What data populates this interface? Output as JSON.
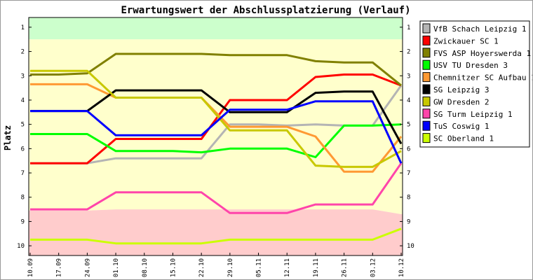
{
  "chart_data": {
    "type": "line",
    "title": "Erwartungswert der Abschlussplatzierung (Verlauf)",
    "ylabel": "Platz",
    "xlabel": "",
    "ylim": [
      10.4,
      0.6
    ],
    "y_ticks": [
      "1",
      "2",
      "3",
      "4",
      "5",
      "6",
      "7",
      "8",
      "9",
      "10"
    ],
    "categories": [
      "10.09",
      "17.09",
      "24.09",
      "01.10",
      "08.10",
      "15.10",
      "22.10",
      "29.10",
      "05.11",
      "12.11",
      "19.11",
      "26.11",
      "03.12",
      "10.12"
    ],
    "bands": [
      {
        "name": "promotion",
        "color": "#ccffcc",
        "from": [
          0.6,
          0.6,
          0.6,
          0.6,
          0.6,
          0.6,
          0.6,
          0.6,
          0.6,
          0.6,
          0.6,
          0.6,
          0.6,
          0.6
        ],
        "to": [
          1.5,
          1.5,
          1.5,
          1.5,
          1.5,
          1.5,
          1.5,
          1.5,
          1.5,
          1.5,
          1.5,
          1.5,
          1.5,
          1.5
        ]
      },
      {
        "name": "middle",
        "color": "#ffffcc",
        "from": [
          1.5,
          1.5,
          1.5,
          1.5,
          1.5,
          1.5,
          1.5,
          1.5,
          1.5,
          1.5,
          1.5,
          1.5,
          1.5,
          1.5
        ],
        "to": [
          8.55,
          8.55,
          8.55,
          8.5,
          8.5,
          8.5,
          8.5,
          8.5,
          8.5,
          8.5,
          8.5,
          8.5,
          8.5,
          8.7
        ]
      },
      {
        "name": "relegation",
        "color": "#ffcccc",
        "from": [
          8.55,
          8.55,
          8.55,
          8.5,
          8.5,
          8.5,
          8.5,
          8.5,
          8.5,
          8.5,
          8.5,
          8.5,
          8.5,
          8.7
        ],
        "to": [
          10.4,
          10.4,
          10.4,
          10.4,
          10.4,
          10.4,
          10.4,
          10.4,
          10.4,
          10.4,
          10.4,
          10.4,
          10.4,
          10.4
        ]
      }
    ],
    "series": [
      {
        "name": "VfB Schach Leipzig 1",
        "color": "#b4b4b4",
        "values": [
          6.6,
          6.6,
          6.6,
          6.4,
          6.4,
          6.4,
          6.4,
          5.0,
          5.0,
          5.05,
          5.0,
          5.05,
          5.05,
          3.4
        ]
      },
      {
        "name": "Zwickauer SC 1",
        "color": "#ff0000",
        "values": [
          6.6,
          6.6,
          6.6,
          5.6,
          5.6,
          5.6,
          5.6,
          4.0,
          4.0,
          4.0,
          3.05,
          2.95,
          2.95,
          3.4
        ]
      },
      {
        "name": "FVS ASP Hoyerswerda 1",
        "color": "#808000",
        "values": [
          2.95,
          2.95,
          2.9,
          2.1,
          2.1,
          2.1,
          2.1,
          2.15,
          2.15,
          2.15,
          2.4,
          2.45,
          2.45,
          3.4
        ]
      },
      {
        "name": "USV TU Dresden 3",
        "color": "#00ff00",
        "values": [
          5.4,
          5.4,
          5.4,
          6.1,
          6.1,
          6.1,
          6.15,
          6.0,
          6.0,
          6.0,
          6.35,
          5.05,
          5.05,
          5.0
        ]
      },
      {
        "name": "Chemnitzer SC Aufbau 1",
        "color": "#ff9933",
        "values": [
          3.35,
          3.35,
          3.35,
          3.9,
          3.9,
          3.9,
          3.9,
          5.1,
          5.1,
          5.1,
          5.5,
          6.95,
          6.95,
          5.5
        ]
      },
      {
        "name": "SG Leipzig 3",
        "color": "#000000",
        "values": [
          4.45,
          4.45,
          4.45,
          3.6,
          3.6,
          3.6,
          3.6,
          4.5,
          4.5,
          4.5,
          3.7,
          3.65,
          3.65,
          5.8
        ]
      },
      {
        "name": "GW Dresden 2",
        "color": "#c8c800",
        "values": [
          2.8,
          2.8,
          2.8,
          3.9,
          3.9,
          3.9,
          3.9,
          5.25,
          5.25,
          5.25,
          6.7,
          6.75,
          6.75,
          6.1
        ]
      },
      {
        "name": "SG Turm Leipzig 1",
        "color": "#ff44aa",
        "values": [
          8.5,
          8.5,
          8.5,
          7.8,
          7.8,
          7.8,
          7.8,
          8.65,
          8.65,
          8.65,
          8.3,
          8.3,
          8.3,
          6.6
        ]
      },
      {
        "name": "TuS Coswig 1",
        "color": "#0000ff",
        "values": [
          4.45,
          4.45,
          4.45,
          5.45,
          5.45,
          5.45,
          5.45,
          4.4,
          4.4,
          4.4,
          4.05,
          4.05,
          4.05,
          6.6
        ]
      },
      {
        "name": "SC Oberland 1",
        "color": "#ccff00",
        "values": [
          9.75,
          9.75,
          9.75,
          9.9,
          9.9,
          9.9,
          9.9,
          9.75,
          9.75,
          9.75,
          9.75,
          9.75,
          9.75,
          9.3
        ]
      }
    ],
    "grid": false,
    "legend_position": "right"
  }
}
